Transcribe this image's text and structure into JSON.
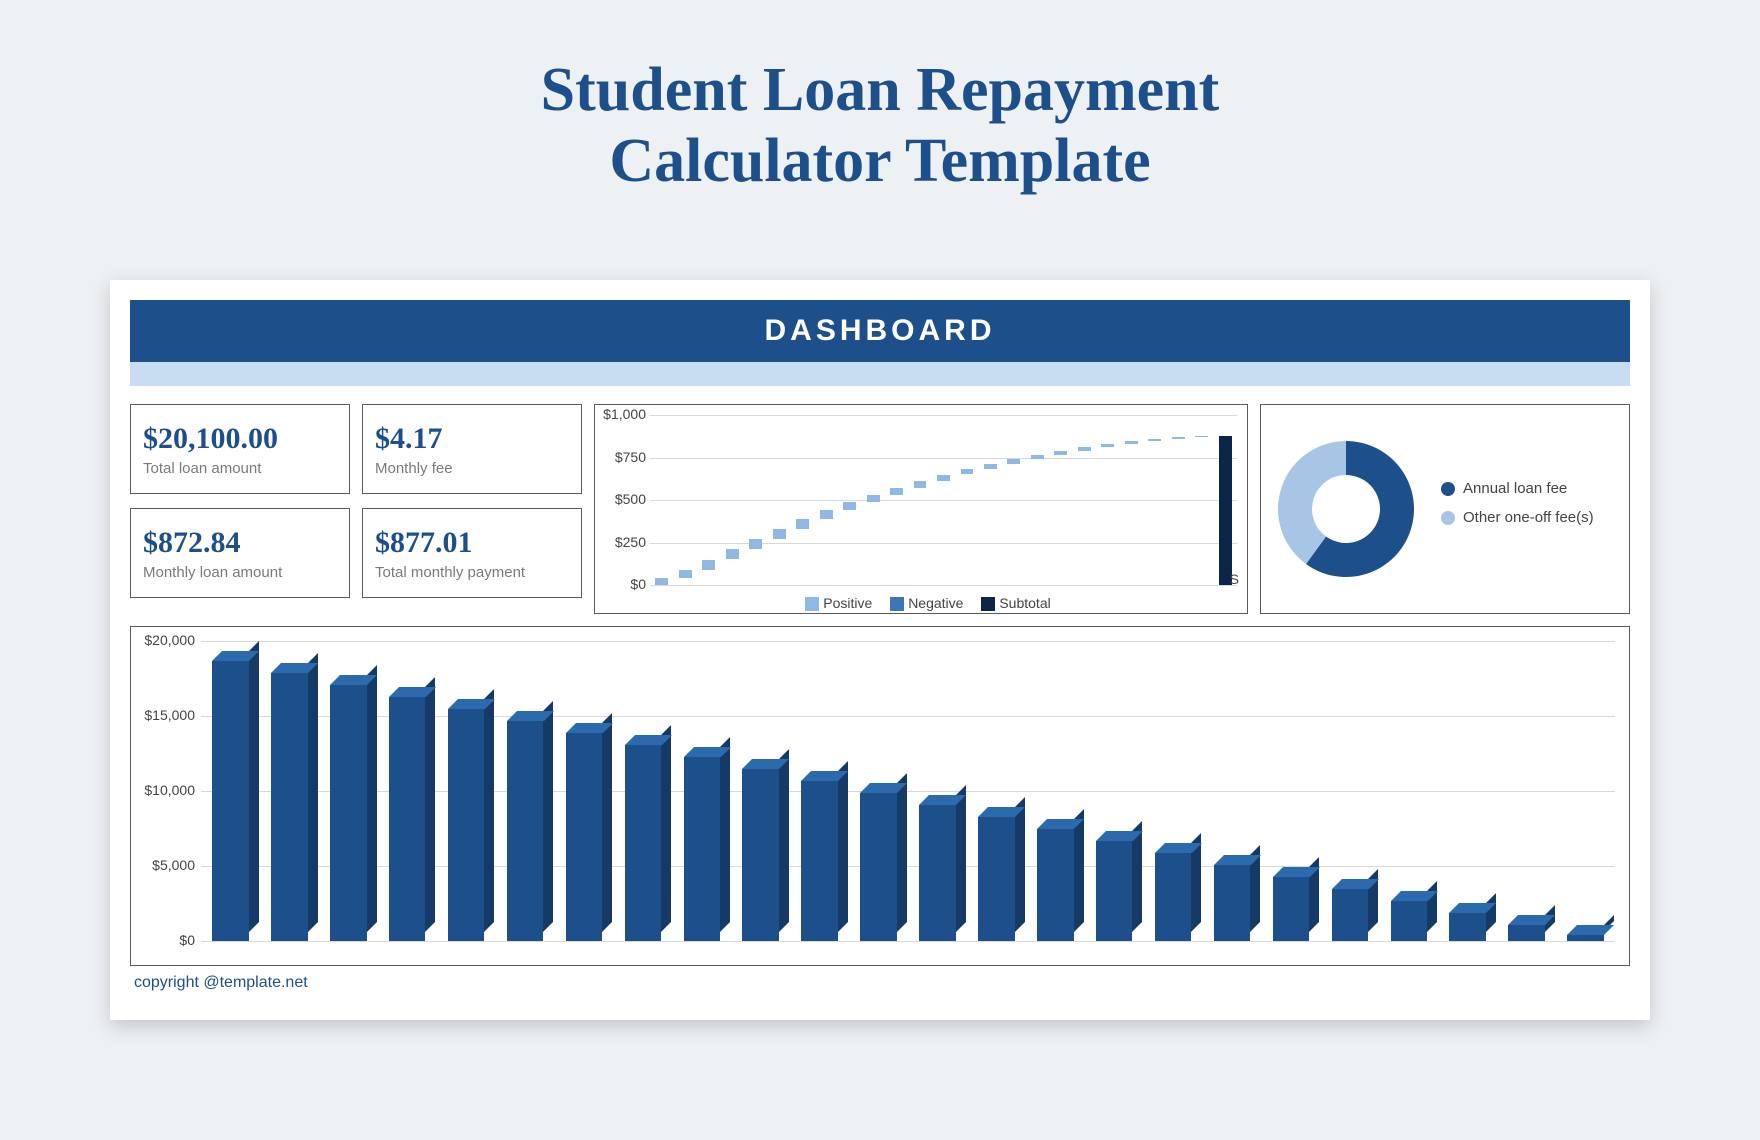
{
  "title_line1": "Student Loan Repayment",
  "title_line2": "Calculator Template",
  "dashboard_label": "DASHBOARD",
  "kpis": {
    "total_loan": {
      "value": "$20,100.00",
      "label": "Total loan amount"
    },
    "monthly_fee": {
      "value": "$4.17",
      "label": "Monthly fee"
    },
    "monthly_loan": {
      "value": "$872.84",
      "label": "Monthly loan amount"
    },
    "total_monthly": {
      "value": "$877.01",
      "label": "Total monthly payment"
    }
  },
  "waterfall": {
    "type": "waterfall",
    "ylim": [
      0,
      1000
    ],
    "ytick_labels": [
      "$0",
      "$250",
      "$500",
      "$750",
      "$1,000"
    ],
    "legend": {
      "positive": "Positive",
      "negative": "Negative",
      "subtotal": "Subtotal"
    },
    "colors": {
      "positive": "#8fb9e3",
      "negative": "#3d76b8",
      "subtotal": "#0b2548",
      "grid": "#d8d8d8"
    },
    "values": [
      40,
      90,
      150,
      210,
      270,
      330,
      390,
      440,
      490,
      530,
      570,
      610,
      650,
      680,
      710,
      740,
      765,
      790,
      810,
      830,
      845,
      858,
      868,
      875
    ],
    "subtotal_value": 875,
    "xaxis_glyph": "S"
  },
  "donut": {
    "type": "donut",
    "slices": [
      {
        "label": "Annual loan fee",
        "color": "#1d4f8b",
        "fraction": 0.6
      },
      {
        "label": "Other one-off fee(s)",
        "color": "#a7c6e6",
        "fraction": 0.4
      }
    ],
    "hole_color": "#ffffff"
  },
  "bar_chart": {
    "type": "bar",
    "ylim": [
      0,
      20000
    ],
    "ytick_step": 5000,
    "ytick_labels": [
      "$0",
      "$5,000",
      "$10,000",
      "$15,000",
      "$20,000"
    ],
    "bar_color_front": "#1d4f8b",
    "bar_color_side": "#153a66",
    "bar_color_top": "#2b6aad",
    "grid_color": "#d8d8d8",
    "values": [
      18700,
      17900,
      17100,
      16300,
      15500,
      14700,
      13900,
      13100,
      12300,
      11500,
      10700,
      9900,
      9100,
      8300,
      7500,
      6700,
      5900,
      5100,
      4300,
      3500,
      2700,
      1900,
      1100,
      400
    ]
  },
  "copyright": "copyright @template.net",
  "styling": {
    "page_bg": "#edf1f4",
    "panel_bg": "#ffffff",
    "header_bg": "#1d4f8b",
    "header_sub_bg": "#c9ddf2",
    "title_color": "#1d4f8b",
    "title_fontsize": 62,
    "kpi_value_color": "#1d4f8b",
    "kpi_label_color": "#7a7a7a",
    "border_color": "#5a5a5a"
  }
}
